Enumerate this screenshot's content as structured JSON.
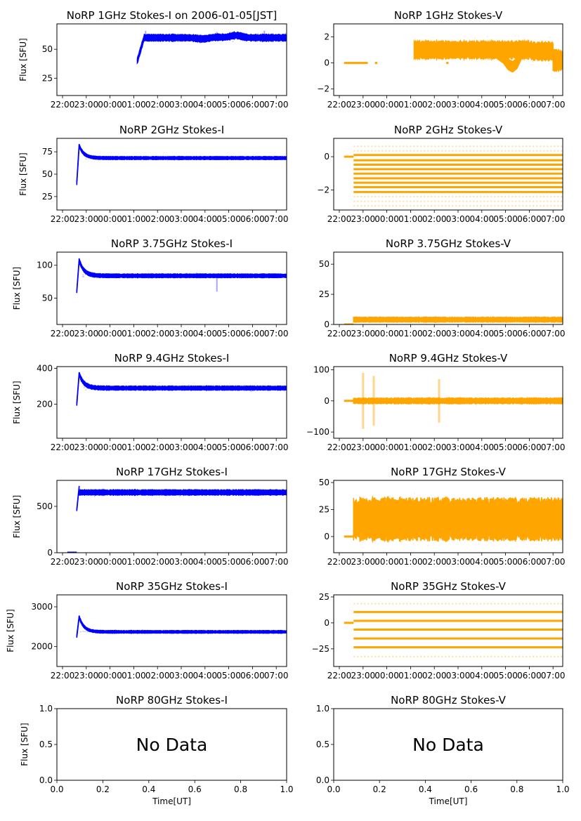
{
  "figure": {
    "date_label": "2006-01-05[JST]",
    "colors": {
      "stokes_i": "#0000ff",
      "stokes_v": "#ffa500",
      "axis": "#000000"
    },
    "time_ticks": [
      "22:00",
      "23:00",
      "00:00",
      "01:00",
      "02:00",
      "03:00",
      "04:00",
      "05:00",
      "06:00",
      "07:00"
    ],
    "xlabel": "Time[UT]",
    "ylabel": "Flux [SFU]",
    "no_data_text": "No Data"
  },
  "chart_data": [
    {
      "type": "scatter",
      "id": "1ghz-i",
      "title": "NoRP 1GHz Stokes-I on 2006-01-05[JST]",
      "ylabel": "Flux [SFU]",
      "color": "#0000ff",
      "ylim": [
        10,
        72
      ],
      "yticks": [
        25,
        50
      ],
      "xlim_hours": [
        -2.25,
        7.6
      ],
      "segments": [
        {
          "start": 1.15,
          "end": 1.45,
          "from": 40,
          "to": 61,
          "spread": 2
        },
        {
          "start": 1.45,
          "end": 8.0,
          "level": 60,
          "spread": 2.5,
          "bumps": [
            [
              1.45,
              2
            ],
            [
              7.3,
              2
            ],
            [
              6.5,
              0.5
            ],
            [
              5.9,
              -1
            ]
          ]
        }
      ],
      "spikes": [
        [
          1.5,
          66
        ],
        [
          4.5,
          65
        ],
        [
          6.5,
          66
        ]
      ]
    },
    {
      "type": "scatter",
      "id": "1ghz-v",
      "title": "NoRP 1GHz Stokes-V",
      "ylabel": "",
      "color": "#ffa500",
      "ylim": [
        -2.5,
        3.0
      ],
      "yticks": [
        -2,
        0,
        2
      ],
      "xlim_hours": [
        -2.25,
        7.6
      ],
      "flat": [
        [
          -1.8,
          -0.8
        ],
        [
          -0.5,
          -0.4
        ],
        [
          2.5,
          2.6
        ],
        [
          8.0,
          9.2
        ]
      ],
      "segments": [
        {
          "start": 1.15,
          "end": 6.1,
          "level": 1.0,
          "spread": 0.6
        },
        {
          "start": 6.1,
          "end": 7.0,
          "level": 0.9,
          "spread": 0.6,
          "dip": [
            7.3,
            -0.9
          ]
        },
        {
          "start": 7.0,
          "end": 8.0,
          "level": 0.2,
          "spread": 0.7
        }
      ]
    },
    {
      "type": "scatter",
      "id": "2ghz-i",
      "title": "NoRP 2GHz Stokes-I",
      "ylabel": "Flux [SFU]",
      "color": "#0000ff",
      "ylim": [
        10,
        90
      ],
      "yticks": [
        25,
        50,
        75
      ],
      "xlim_hours": [
        -2.25,
        7.6
      ],
      "segments": [
        {
          "start": -1.4,
          "end": -1.3,
          "from": 40,
          "to": 82,
          "spread": 2
        },
        {
          "start": -1.3,
          "end": 9.0,
          "level": 68,
          "spread": 1.5,
          "decay_from": 82
        }
      ],
      "spikes": [
        [
          9.0,
          40
        ]
      ]
    },
    {
      "type": "scatter",
      "id": "2ghz-v",
      "title": "NoRP 2GHz Stokes-V",
      "ylabel": "",
      "color": "#ffa500",
      "ylim": [
        -3.2,
        1.1
      ],
      "yticks": [
        -2,
        0
      ],
      "xlim_hours": [
        -2.25,
        7.6
      ],
      "flat": [
        [
          -1.8,
          -1.4
        ],
        [
          9.0,
          9.2
        ]
      ],
      "levels": [
        0.1,
        -0.22,
        -0.48,
        -0.75,
        -1.02,
        -1.3,
        -1.56,
        -1.83,
        -2.12
      ],
      "faint_levels": [
        0.35,
        0.62,
        -2.4,
        -2.68,
        -2.95
      ],
      "xrange": [
        -1.4,
        9.0
      ]
    },
    {
      "type": "scatter",
      "id": "3.75ghz-i",
      "title": "NoRP 3.75GHz Stokes-I",
      "ylabel": "Flux [SFU]",
      "color": "#0000ff",
      "ylim": [
        10,
        120
      ],
      "yticks": [
        50,
        100
      ],
      "xlim_hours": [
        -2.25,
        7.6
      ],
      "segments": [
        {
          "start": -1.4,
          "end": -1.3,
          "from": 60,
          "to": 108,
          "spread": 2
        },
        {
          "start": -1.3,
          "end": 9.0,
          "level": 84,
          "spread": 2.5,
          "decay_from": 108
        }
      ],
      "spikes": [
        [
          4.5,
          60
        ],
        [
          9.0,
          60
        ],
        [
          9.1,
          60
        ]
      ]
    },
    {
      "type": "scatter",
      "id": "3.75ghz-v",
      "title": "NoRP 3.75GHz Stokes-V",
      "ylabel": "",
      "color": "#ffa500",
      "ylim": [
        0,
        60
      ],
      "yticks": [
        0,
        25,
        50
      ],
      "xlim_hours": [
        -2.25,
        7.6
      ],
      "flat": [
        [
          -1.8,
          -1.4
        ],
        [
          9.0,
          9.2
        ]
      ],
      "segments": [
        {
          "start": -1.4,
          "end": 9.0,
          "level": 4,
          "spread": 1.8
        }
      ],
      "spikes": [
        [
          9.1,
          58
        ],
        [
          9.1,
          40
        ]
      ]
    },
    {
      "type": "scatter",
      "id": "9.4ghz-i",
      "title": "NoRP 9.4GHz Stokes-I",
      "ylabel": "Flux [SFU]",
      "color": "#0000ff",
      "ylim": [
        10,
        410
      ],
      "yticks": [
        200,
        400
      ],
      "xlim_hours": [
        -2.25,
        7.6
      ],
      "segments": [
        {
          "start": -1.4,
          "end": -1.3,
          "from": 200,
          "to": 370,
          "spread": 8
        },
        {
          "start": -1.3,
          "end": 9.0,
          "level": 290,
          "spread": 10,
          "decay_from": 370
        }
      ],
      "spikes": [
        [
          9.0,
          210
        ]
      ]
    },
    {
      "type": "scatter",
      "id": "9.4ghz-v",
      "title": "NoRP 9.4GHz Stokes-V",
      "ylabel": "",
      "color": "#ffa500",
      "ylim": [
        -120,
        110
      ],
      "yticks": [
        -100,
        0,
        100
      ],
      "xlim_hours": [
        -2.25,
        7.6
      ],
      "flat": [
        [
          -1.8,
          -1.4
        ],
        [
          9.0,
          9.2
        ]
      ],
      "segments": [
        {
          "start": -1.4,
          "end": 9.0,
          "level": 0,
          "spread": 8
        }
      ],
      "bursts": [
        [
          -1.0,
          90
        ],
        [
          -0.55,
          80
        ],
        [
          2.2,
          70
        ],
        [
          8.7,
          60
        ]
      ]
    },
    {
      "type": "scatter",
      "id": "17ghz-i",
      "title": "NoRP 17GHz Stokes-I",
      "ylabel": "Flux [SFU]",
      "color": "#0000ff",
      "ylim": [
        0,
        780
      ],
      "yticks": [
        0,
        500
      ],
      "xlim_hours": [
        -2.25,
        7.6
      ],
      "flat": [
        [
          -1.8,
          -1.4
        ],
        [
          9.0,
          9.2
        ]
      ],
      "segments": [
        {
          "start": -1.4,
          "end": -1.3,
          "from": 460,
          "to": 710,
          "spread": 10
        },
        {
          "start": -1.3,
          "end": 9.0,
          "level": 650,
          "spread": 25
        }
      ],
      "spikes": [
        [
          9.0,
          410
        ]
      ]
    },
    {
      "type": "scatter",
      "id": "17ghz-v",
      "title": "NoRP 17GHz Stokes-V",
      "ylabel": "",
      "color": "#ffa500",
      "ylim": [
        -15,
        52
      ],
      "yticks": [
        0,
        25,
        50
      ],
      "xlim_hours": [
        -2.25,
        7.6
      ],
      "flat": [
        [
          -1.8,
          -1.4
        ],
        [
          9.0,
          9.2
        ]
      ],
      "segments": [
        {
          "start": -1.4,
          "end": 9.0,
          "level": 16,
          "spread": 17
        }
      ]
    },
    {
      "type": "scatter",
      "id": "35ghz-i",
      "title": "NoRP 35GHz Stokes-I",
      "ylabel": "Flux [SFU]",
      "color": "#0000ff",
      "ylim": [
        1500,
        3300
      ],
      "yticks": [
        2000,
        3000
      ],
      "xlim_hours": [
        -2.25,
        7.6
      ],
      "segments": [
        {
          "start": -1.4,
          "end": -1.3,
          "from": 2250,
          "to": 2750,
          "spread": 30
        },
        {
          "start": -1.3,
          "end": 8.9,
          "level": 2370,
          "spread": 30,
          "decay_from": 2750,
          "rise_to": [
            8.9,
            3000
          ]
        }
      ],
      "spikes": [
        [
          9.0,
          2000
        ]
      ]
    },
    {
      "type": "scatter",
      "id": "35ghz-v",
      "title": "NoRP 35GHz Stokes-V",
      "ylabel": "",
      "color": "#ffa500",
      "ylim": [
        -42,
        27
      ],
      "yticks": [
        -25,
        0,
        25
      ],
      "xlim_hours": [
        -2.25,
        7.6
      ],
      "flat": [
        [
          -1.8,
          -1.4
        ],
        [
          9.0,
          9.2
        ]
      ],
      "levels": [
        10.5,
        2,
        -6.5,
        -15,
        -23.5
      ],
      "faint_levels": [
        18.5,
        -32.5
      ],
      "xrange": [
        -1.4,
        9.0
      ]
    },
    {
      "type": "scatter",
      "id": "80ghz-i",
      "title": "NoRP 80GHz Stokes-I",
      "ylabel": "Flux [SFU]",
      "xlabel": "Time[UT]",
      "no_data": true,
      "xlim": [
        0,
        1
      ],
      "ylim": [
        0,
        1
      ],
      "xticks": [
        "0.0",
        "0.2",
        "0.4",
        "0.6",
        "0.8",
        "1.0"
      ],
      "yticks": [
        "0.0",
        "0.5",
        "1.0"
      ]
    },
    {
      "type": "scatter",
      "id": "80ghz-v",
      "title": "NoRP 80GHz Stokes-V",
      "ylabel": "",
      "xlabel": "Time[UT]",
      "no_data": true,
      "xlim": [
        0,
        1
      ],
      "ylim": [
        0,
        1
      ],
      "xticks": [
        "0.0",
        "0.2",
        "0.4",
        "0.6",
        "0.8",
        "1.0"
      ],
      "yticks": [
        "0.0",
        "0.5",
        "1.0"
      ]
    }
  ]
}
